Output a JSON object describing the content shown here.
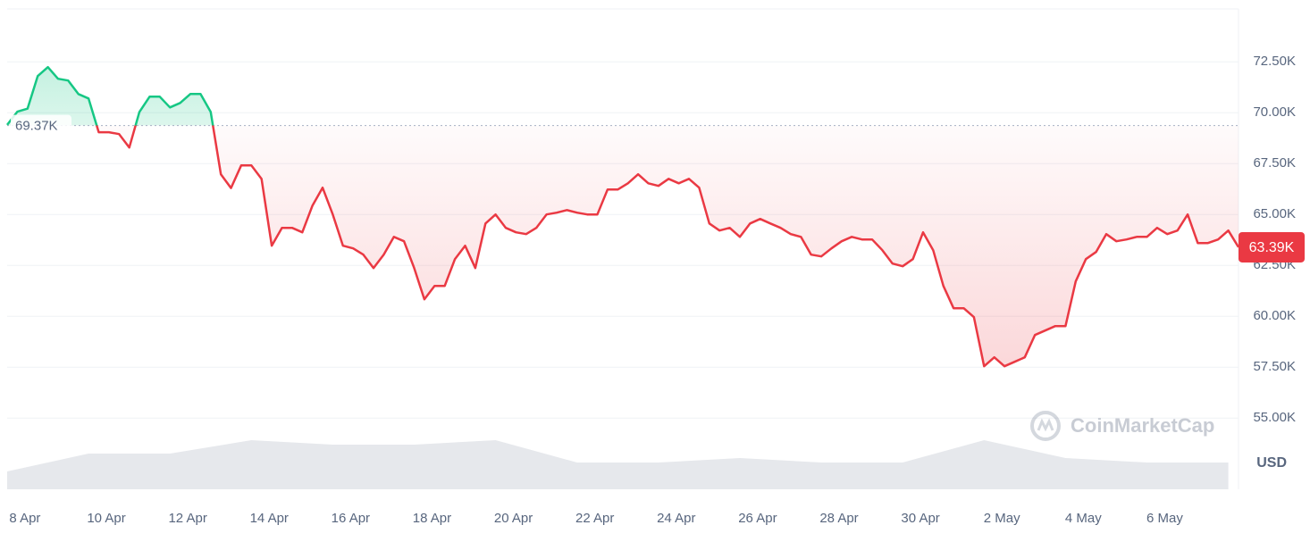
{
  "chart_data": {
    "type": "line",
    "values": [
      69400,
      70050,
      70200,
      71800,
      72240,
      71670,
      71580,
      70920,
      70700,
      69040,
      69040,
      68950,
      68290,
      70040,
      70790,
      70790,
      70260,
      70480,
      70920,
      70920,
      70040,
      66970,
      66300,
      67410,
      67410,
      66750,
      63465,
      64342,
      64342,
      64123,
      65439,
      66316,
      65000,
      63465,
      63333,
      63026,
      62368,
      63026,
      63903,
      63684,
      62368,
      60833,
      61491,
      61491,
      62807,
      63465,
      62368,
      64561,
      65000,
      64342,
      64123,
      64035,
      64342,
      65000,
      65088,
      65219,
      65088,
      65000,
      65000,
      66228,
      66228,
      66535,
      66974,
      66535,
      66404,
      66754,
      66535,
      66754,
      66316,
      64561,
      64211,
      64342,
      63903,
      64561,
      64781,
      64561,
      64342,
      64035,
      63903,
      63026,
      62939,
      63333,
      63684,
      63903,
      63772,
      63772,
      63246,
      62588,
      62456,
      62807,
      64123,
      63246,
      61491,
      60395,
      60395,
      59956,
      57544,
      57982,
      57544,
      57763,
      57982,
      59079,
      59298,
      59518,
      59518,
      61711,
      62807,
      63158,
      64035,
      63684,
      63772,
      63903,
      63903,
      64342,
      64035,
      64211,
      65000,
      63597,
      63597,
      63772,
      64211,
      63390
    ],
    "colors": {
      "up": "#16c784",
      "down": "#ea3943"
    },
    "baseline": {
      "value": 69370,
      "label": "69.37K"
    },
    "last_price": {
      "value": 63390,
      "label": "63.39K"
    },
    "y_axis_unit": "USD",
    "watermark": "CoinMarketCap",
    "xlim": [
      0,
      121
    ],
    "xticks": [
      {
        "value": 1.75,
        "label": "8 Apr"
      },
      {
        "value": 9.75,
        "label": "10 Apr"
      },
      {
        "value": 17.75,
        "label": "12 Apr"
      },
      {
        "value": 25.75,
        "label": "14 Apr"
      },
      {
        "value": 33.75,
        "label": "16 Apr"
      },
      {
        "value": 41.75,
        "label": "18 Apr"
      },
      {
        "value": 49.75,
        "label": "20 Apr"
      },
      {
        "value": 57.75,
        "label": "22 Apr"
      },
      {
        "value": 65.75,
        "label": "24 Apr"
      },
      {
        "value": 73.75,
        "label": "26 Apr"
      },
      {
        "value": 81.75,
        "label": "28 Apr"
      },
      {
        "value": 89.75,
        "label": "30 Apr"
      },
      {
        "value": 97.75,
        "label": "2 May"
      },
      {
        "value": 105.75,
        "label": "4 May"
      },
      {
        "value": 113.75,
        "label": "6 May"
      }
    ],
    "ylim": [
      51500,
      75100
    ],
    "yticks": [
      {
        "value": 55000,
        "label": "55.00K"
      },
      {
        "value": 57500,
        "label": "57.50K"
      },
      {
        "value": 60000,
        "label": "60.00K"
      },
      {
        "value": 62500,
        "label": "62.50K"
      },
      {
        "value": 65000,
        "label": "65.00K"
      },
      {
        "value": 67500,
        "label": "67.50K"
      },
      {
        "value": 70000,
        "label": "70.00K"
      },
      {
        "value": 72500,
        "label": "72.50K"
      }
    ],
    "grid": true,
    "volume": {
      "x": [
        0,
        8,
        16,
        24,
        32,
        40,
        48,
        56,
        64,
        72,
        80,
        88,
        96,
        104,
        112,
        120
      ],
      "values": [
        20,
        40,
        40,
        55,
        50,
        50,
        55,
        30,
        30,
        35,
        30,
        30,
        55,
        35,
        30,
        30
      ],
      "lim": [
        0,
        100
      ],
      "color": "#e6e8ec"
    }
  }
}
